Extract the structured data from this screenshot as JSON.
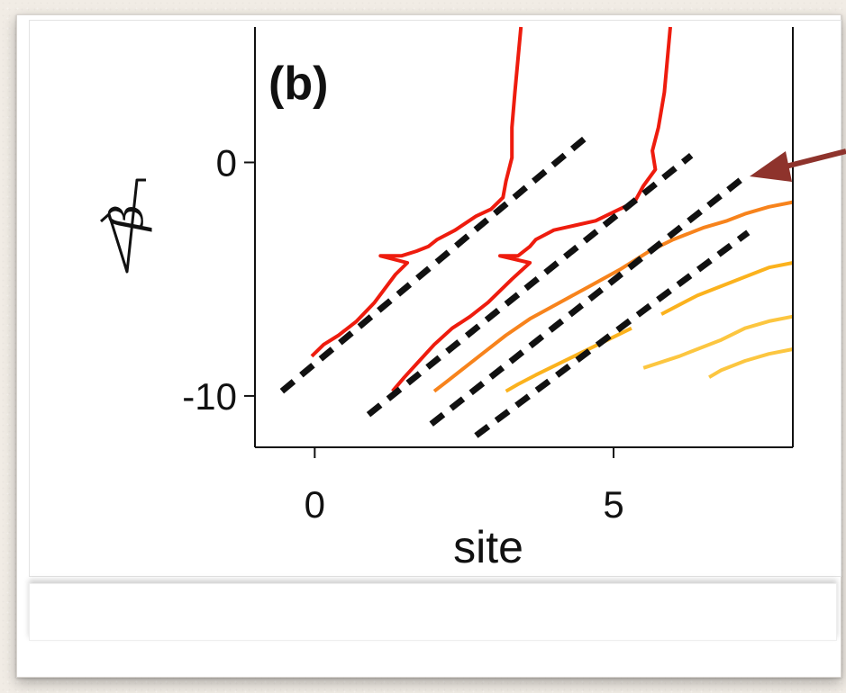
{
  "chart_data": {
    "type": "line",
    "panel_label": "(b)",
    "xlabel": "site",
    "ylabel": "β",
    "ylabel_has_sqrt": true,
    "xlim": [
      -1,
      8
    ],
    "ylim": [
      -12.2,
      5.8
    ],
    "xticks": [
      {
        "value": 0,
        "label": "0"
      },
      {
        "value": 5,
        "label": "5"
      }
    ],
    "yticks": [
      {
        "value": 0,
        "label": "0"
      },
      {
        "value": -10,
        "label": "-10"
      }
    ],
    "grid": false,
    "legend": "none",
    "colors": {
      "red": "#ee1c0e",
      "orange": "#f7831c",
      "amber": "#fbb21d",
      "yellow": "#fcc640",
      "dashed": "#111111",
      "arrow": "#8e332c"
    },
    "series": [
      {
        "color": "red",
        "style": "solid",
        "points": [
          [
            3.45,
            5.8
          ],
          [
            3.35,
            3.0
          ],
          [
            3.3,
            1.5
          ],
          [
            3.3,
            0.2
          ],
          [
            3.2,
            -0.8
          ],
          [
            3.15,
            -1.5
          ],
          [
            2.95,
            -2.0
          ],
          [
            2.7,
            -2.3
          ],
          [
            2.35,
            -2.9
          ],
          [
            2.05,
            -3.3
          ],
          [
            1.9,
            -3.6
          ],
          [
            1.7,
            -3.8
          ],
          [
            1.45,
            -4.0
          ],
          [
            1.1,
            -4.0
          ],
          [
            1.55,
            -4.3
          ],
          [
            1.35,
            -4.8
          ],
          [
            1.0,
            -6.0
          ],
          [
            0.7,
            -6.8
          ],
          [
            0.4,
            -7.4
          ],
          [
            0.15,
            -7.8
          ],
          [
            -0.05,
            -8.3
          ]
        ]
      },
      {
        "color": "red",
        "style": "solid",
        "points": [
          [
            5.95,
            5.8
          ],
          [
            5.85,
            3.0
          ],
          [
            5.75,
            1.5
          ],
          [
            5.65,
            0.5
          ],
          [
            5.7,
            -0.3
          ],
          [
            5.5,
            -1.0
          ],
          [
            5.35,
            -1.7
          ],
          [
            5.1,
            -2.0
          ],
          [
            4.7,
            -2.5
          ],
          [
            4.35,
            -2.7
          ],
          [
            4.0,
            -2.9
          ],
          [
            3.7,
            -3.3
          ],
          [
            3.6,
            -3.6
          ],
          [
            3.4,
            -4.0
          ],
          [
            3.1,
            -4.0
          ],
          [
            3.6,
            -4.3
          ],
          [
            3.3,
            -5.0
          ],
          [
            2.9,
            -6.0
          ],
          [
            2.6,
            -6.6
          ],
          [
            2.3,
            -7.1
          ],
          [
            2.0,
            -7.8
          ],
          [
            1.75,
            -8.5
          ],
          [
            1.5,
            -9.2
          ],
          [
            1.3,
            -9.8
          ]
        ]
      },
      {
        "color": "orange",
        "style": "solid",
        "points": [
          [
            8.0,
            -1.7
          ],
          [
            7.6,
            -1.9
          ],
          [
            7.2,
            -2.2
          ],
          [
            6.9,
            -2.5
          ],
          [
            6.5,
            -2.8
          ],
          [
            6.0,
            -3.3
          ],
          [
            5.6,
            -3.8
          ],
          [
            5.1,
            -4.6
          ],
          [
            4.6,
            -5.3
          ],
          [
            4.1,
            -6.0
          ],
          [
            3.6,
            -6.7
          ],
          [
            3.2,
            -7.4
          ],
          [
            2.8,
            -8.2
          ],
          [
            2.5,
            -8.8
          ],
          [
            2.2,
            -9.4
          ],
          [
            2.0,
            -9.8
          ]
        ]
      },
      {
        "color": "amber",
        "style": "solid",
        "points": [
          [
            8.0,
            -4.3
          ],
          [
            7.6,
            -4.5
          ],
          [
            7.2,
            -4.9
          ],
          [
            6.8,
            -5.3
          ],
          [
            6.4,
            -5.7
          ],
          [
            6.1,
            -6.1
          ],
          [
            5.8,
            -6.5
          ]
        ]
      },
      {
        "color": "amber",
        "style": "solid",
        "points": [
          [
            5.3,
            -7.1
          ],
          [
            4.9,
            -7.6
          ],
          [
            4.5,
            -8.1
          ],
          [
            4.1,
            -8.6
          ],
          [
            3.7,
            -9.1
          ],
          [
            3.4,
            -9.5
          ],
          [
            3.2,
            -9.8
          ]
        ]
      },
      {
        "color": "yellow",
        "style": "solid",
        "points": [
          [
            8.0,
            -6.6
          ],
          [
            7.6,
            -6.8
          ],
          [
            7.2,
            -7.1
          ],
          [
            6.8,
            -7.6
          ],
          [
            6.4,
            -8.0
          ],
          [
            6.1,
            -8.3
          ],
          [
            5.5,
            -8.8
          ]
        ]
      },
      {
        "color": "yellow",
        "style": "solid",
        "points": [
          [
            8.0,
            -8.0
          ],
          [
            7.6,
            -8.2
          ],
          [
            7.2,
            -8.5
          ],
          [
            6.8,
            -8.9
          ],
          [
            6.6,
            -9.2
          ]
        ]
      },
      {
        "color": "dashed",
        "style": "dashed",
        "points": [
          [
            -0.55,
            -9.8
          ],
          [
            4.6,
            1.2
          ]
        ]
      },
      {
        "color": "dashed",
        "style": "dashed",
        "points": [
          [
            0.9,
            -10.8
          ],
          [
            6.3,
            0.3
          ]
        ]
      },
      {
        "color": "dashed",
        "style": "dashed",
        "points": [
          [
            1.95,
            -11.2
          ],
          [
            7.25,
            -0.5
          ]
        ]
      },
      {
        "color": "dashed",
        "style": "dashed",
        "points": [
          [
            2.7,
            -11.7
          ],
          [
            7.25,
            -3.0
          ]
        ]
      }
    ]
  }
}
